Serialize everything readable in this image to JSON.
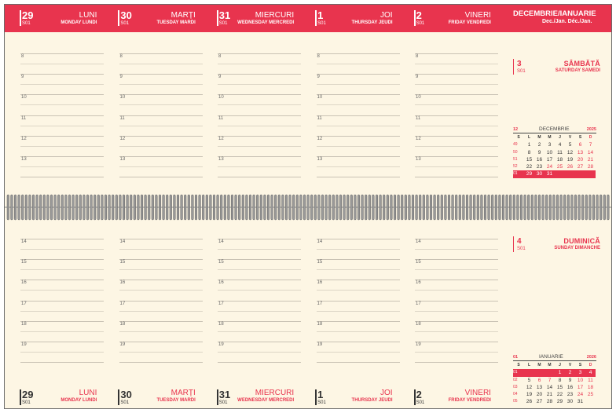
{
  "header": {
    "days": [
      {
        "num": "29",
        "week": "S01",
        "name": "LUNI",
        "sub": "MONDAY  LUNDI"
      },
      {
        "num": "30",
        "week": "S01",
        "name": "MARȚI",
        "sub": "TUESDAY  MARDI"
      },
      {
        "num": "31",
        "week": "S01",
        "name": "MIERCURI",
        "sub": "WEDNESDAY  MERCREDI"
      },
      {
        "num": "1",
        "week": "S01",
        "name": "JOI",
        "sub": "THURSDAY  JEUDI"
      },
      {
        "num": "2",
        "week": "S01",
        "name": "VINERI",
        "sub": "FRIDAY  VENDREDI"
      }
    ],
    "month_title": "DECEMBRIE/IANUARIE",
    "month_sub": "Dec./Jan.  Déc./Jan."
  },
  "top_hours": [
    "8",
    "9",
    "10",
    "11",
    "12",
    "13"
  ],
  "bottom_hours": [
    "14",
    "15",
    "16",
    "17",
    "18",
    "19"
  ],
  "weekend": [
    {
      "num": "3",
      "week": "S01",
      "name": "SÂMBĂTĂ",
      "sub": "SATURDAY  SAMEDI"
    },
    {
      "num": "4",
      "week": "S01",
      "name": "DUMINICĂ",
      "sub": "SUNDAY  DIMANCHE"
    }
  ],
  "mini_calendars": [
    {
      "weekno": "12",
      "month": "DECEMBRIE",
      "year": "2025",
      "dows": [
        "S",
        "L",
        "M",
        "M",
        "J",
        "V",
        "S",
        "D"
      ],
      "rows": [
        {
          "wk": "49",
          "days": [
            "1",
            "2",
            "3",
            "4",
            "5",
            "6",
            "7"
          ],
          "hl": false
        },
        {
          "wk": "50",
          "days": [
            "8",
            "9",
            "10",
            "11",
            "12",
            "13",
            "14"
          ],
          "hl": false
        },
        {
          "wk": "51",
          "days": [
            "15",
            "16",
            "17",
            "18",
            "19",
            "20",
            "21"
          ],
          "hl": false
        },
        {
          "wk": "52",
          "days": [
            "22",
            "23",
            "24",
            "25",
            "26",
            "27",
            "28"
          ],
          "hl": false
        },
        {
          "wk": "01",
          "days": [
            "29",
            "30",
            "31",
            "",
            "",
            "",
            ""
          ],
          "hl": true
        }
      ],
      "red_cells": [
        [
          0,
          5
        ],
        [
          0,
          6
        ],
        [
          1,
          5
        ],
        [
          1,
          6
        ],
        [
          2,
          5
        ],
        [
          2,
          6
        ],
        [
          3,
          2
        ],
        [
          3,
          3
        ],
        [
          3,
          4
        ],
        [
          3,
          5
        ],
        [
          3,
          6
        ]
      ]
    },
    {
      "weekno": "01",
      "month": "IANUARIE",
      "year": "2026",
      "dows": [
        "S",
        "L",
        "M",
        "M",
        "J",
        "V",
        "S",
        "D"
      ],
      "rows": [
        {
          "wk": "01",
          "days": [
            "",
            "",
            "",
            "1",
            "2",
            "3",
            "4"
          ],
          "hl": true
        },
        {
          "wk": "02",
          "days": [
            "5",
            "6",
            "7",
            "8",
            "9",
            "10",
            "11"
          ],
          "hl": false
        },
        {
          "wk": "03",
          "days": [
            "12",
            "13",
            "14",
            "15",
            "16",
            "17",
            "18"
          ],
          "hl": false
        },
        {
          "wk": "04",
          "days": [
            "19",
            "20",
            "21",
            "22",
            "23",
            "24",
            "25"
          ],
          "hl": false
        },
        {
          "wk": "05",
          "days": [
            "26",
            "27",
            "28",
            "29",
            "30",
            "31",
            ""
          ],
          "hl": false
        }
      ],
      "red_cells": [
        [
          1,
          1
        ],
        [
          1,
          2
        ],
        [
          1,
          5
        ],
        [
          1,
          6
        ],
        [
          2,
          5
        ],
        [
          2,
          6
        ],
        [
          3,
          5
        ],
        [
          3,
          6
        ]
      ]
    }
  ],
  "colors": {
    "accent": "#e8344e",
    "paper": "#fdf6e4"
  }
}
